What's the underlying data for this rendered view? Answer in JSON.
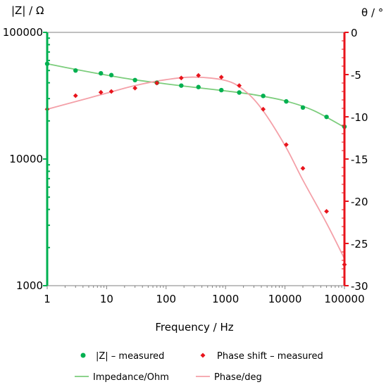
{
  "chart_data": {
    "type": "scatter",
    "xlabel": "Frequency / Hz",
    "ylabel_left": "|Z| / Ω",
    "ylabel_right": "θ / °",
    "x_scale": "log",
    "y_left_scale": "log",
    "xlim": [
      1,
      100000
    ],
    "ylim_left": [
      1000,
      100000
    ],
    "ylim_right": [
      -30,
      0
    ],
    "x_ticks": [
      "1",
      "10",
      "100",
      "1000",
      "10000",
      "100000"
    ],
    "y_left_ticks": [
      "1000",
      "10000",
      "100000"
    ],
    "y_right_ticks": [
      "0",
      "-5",
      "-10",
      "-15",
      "-20",
      "-25",
      "-30"
    ],
    "grid": false,
    "legend_position": "bottom",
    "colors": {
      "impedance": "#00b050",
      "impedance_line": "#7ccd7c",
      "phase": "#e8141c",
      "phase_line": "#f4a0a8"
    },
    "series": [
      {
        "name": "|Z| – measured",
        "axis": "left",
        "marker": "circle",
        "x": [
          1,
          3,
          8,
          12,
          30,
          70,
          180,
          350,
          850,
          1700,
          4300,
          10500,
          20000,
          50000,
          100000
        ],
        "y": [
          56500,
          50000,
          47500,
          46000,
          42000,
          40000,
          38000,
          37000,
          35000,
          33500,
          31500,
          28500,
          25500,
          21500,
          18000
        ]
      },
      {
        "name": "Phase shift – measured",
        "axis": "right",
        "marker": "diamond",
        "x": [
          1,
          3,
          8,
          12,
          30,
          70,
          180,
          350,
          850,
          1700,
          4300,
          10500,
          20000,
          50000,
          100000
        ],
        "y": [
          -9.1,
          -7.5,
          -7.1,
          -7.0,
          -6.6,
          -6.0,
          -5.4,
          -5.1,
          -5.3,
          -6.3,
          -9.1,
          -13.3,
          -16.1,
          -21.2,
          -27.5
        ]
      },
      {
        "name": "Impedance/Ohm",
        "axis": "left",
        "marker": "line",
        "x": [
          1,
          3,
          10,
          30,
          100,
          300,
          1000,
          3000,
          10000,
          30000,
          100000
        ],
        "y": [
          56500,
          51000,
          46000,
          42200,
          39200,
          36800,
          34500,
          32200,
          28800,
          24200,
          17800
        ]
      },
      {
        "name": "Phase/deg",
        "axis": "right",
        "marker": "line",
        "x": [
          1,
          3,
          10,
          30,
          100,
          300,
          1000,
          2000,
          4000,
          10000,
          20000,
          50000,
          100000
        ],
        "y": [
          -9.1,
          -8.2,
          -7.2,
          -6.3,
          -5.6,
          -5.3,
          -5.7,
          -6.8,
          -9.0,
          -13.4,
          -17.5,
          -22.6,
          -26.8
        ]
      }
    ]
  }
}
